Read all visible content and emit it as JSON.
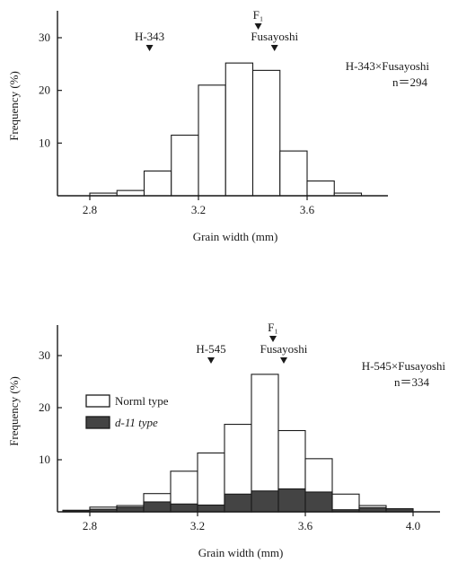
{
  "chart_data": [
    {
      "type": "histogram",
      "xlabel": "Grain width (mm)",
      "ylabel": "Frequency (%)",
      "xlim": [
        2.7,
        3.85
      ],
      "ylim": [
        0,
        32
      ],
      "xticks": [
        "2.8",
        "3.2",
        "3.6"
      ],
      "yticks": [
        "10",
        "20",
        "30"
      ],
      "bin_edges": [
        2.8,
        2.9,
        3.0,
        3.1,
        3.2,
        3.3,
        3.4,
        3.5,
        3.6,
        3.7,
        3.8
      ],
      "series": [
        {
          "values": [
            0.5,
            1.0,
            4.7,
            11.5,
            21.0,
            25.2,
            23.8,
            8.5,
            2.8,
            0.5
          ]
        }
      ],
      "cross": "H-343×Fusayoshi",
      "n": "n＝294",
      "markers": [
        {
          "label": "H-343",
          "x": 3.02
        },
        {
          "label": "F₁",
          "x": 3.42
        },
        {
          "label": "Fusayoshi",
          "x": 3.48
        }
      ]
    },
    {
      "type": "histogram",
      "xlabel": "Grain width (mm)",
      "ylabel": "Frequency (%)",
      "xlim": [
        2.7,
        4.1
      ],
      "ylim": [
        0,
        32
      ],
      "xticks": [
        "2.8",
        "3.2",
        "3.6",
        "4.0"
      ],
      "yticks": [
        "10",
        "20",
        "30"
      ],
      "bin_edges": [
        2.7,
        2.8,
        2.9,
        3.0,
        3.1,
        3.2,
        3.3,
        3.4,
        3.5,
        3.6,
        3.7,
        3.8,
        3.9,
        4.0
      ],
      "series": [
        {
          "name": "Norml type",
          "fill": "#ffffff",
          "values": [
            0.3,
            0.9,
            1.2,
            3.5,
            7.8,
            11.3,
            16.8,
            26.4,
            15.6,
            10.2,
            3.4,
            1.2,
            0.5
          ]
        },
        {
          "name": "d-11 type",
          "fill": "#444444",
          "values": [
            0.2,
            0.5,
            0.9,
            1.9,
            1.5,
            1.3,
            3.4,
            4.0,
            4.4,
            3.8,
            0.4,
            0.8,
            0.6
          ]
        }
      ],
      "cross": "H-545×Fusayoshi",
      "n": "n＝334",
      "markers": [
        {
          "label": "H-545",
          "x": 3.25
        },
        {
          "label": "F₁",
          "x": 3.48
        },
        {
          "label": "Fusayoshi",
          "x": 3.52
        }
      ]
    }
  ]
}
